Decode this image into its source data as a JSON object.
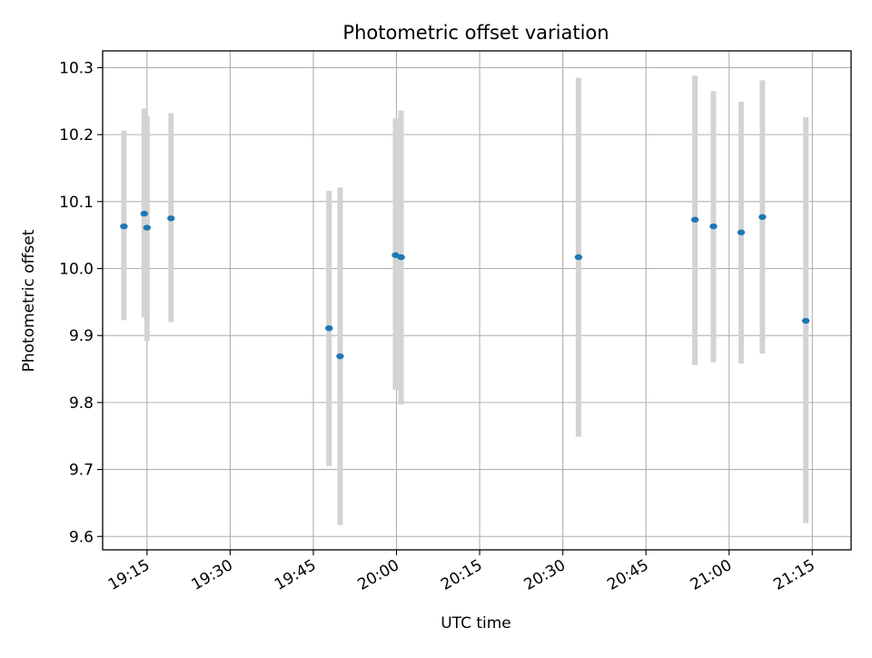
{
  "chart_data": {
    "type": "scatter",
    "title": "Photometric offset variation",
    "xlabel": "UTC time",
    "ylabel": "Photometric offset",
    "x_axis": {
      "type": "time",
      "range": [
        "19:07",
        "21:22"
      ],
      "tick_values": [
        "19:15",
        "19:30",
        "19:45",
        "20:00",
        "20:15",
        "20:30",
        "20:45",
        "21:00",
        "21:15"
      ],
      "tick_labels": [
        "19:15",
        "19:30",
        "19:45",
        "20:00",
        "20:15",
        "20:30",
        "20:45",
        "21:00",
        "21:15"
      ]
    },
    "y_axis": {
      "range": [
        9.58,
        10.325
      ],
      "tick_values": [
        9.6,
        9.7,
        9.8,
        9.9,
        10.0,
        10.1,
        10.2,
        10.3
      ],
      "tick_labels": [
        "9.6",
        "9.7",
        "9.8",
        "9.9",
        "10.0",
        "10.1",
        "10.2",
        "10.3"
      ]
    },
    "grid": true,
    "colors": {
      "points": "#1f77b4",
      "error_bars": "#d3d3d3",
      "grid": "#b0b0b0"
    },
    "points": [
      {
        "x": "19:10:50",
        "y": 10.063,
        "ylow": 9.923,
        "yhigh": 10.206
      },
      {
        "x": "19:14:30",
        "y": 10.082,
        "ylow": 9.927,
        "yhigh": 10.239
      },
      {
        "x": "19:15:00",
        "y": 10.061,
        "ylow": 9.892,
        "yhigh": 10.228
      },
      {
        "x": "19:19:20",
        "y": 10.075,
        "ylow": 9.92,
        "yhigh": 10.232
      },
      {
        "x": "19:47:50",
        "y": 9.911,
        "ylow": 9.705,
        "yhigh": 10.116
      },
      {
        "x": "19:49:50",
        "y": 9.869,
        "ylow": 9.617,
        "yhigh": 10.121
      },
      {
        "x": "19:59:50",
        "y": 10.02,
        "ylow": 9.819,
        "yhigh": 10.224
      },
      {
        "x": "20:00:50",
        "y": 10.017,
        "ylow": 9.797,
        "yhigh": 10.236
      },
      {
        "x": "20:32:50",
        "y": 10.017,
        "ylow": 9.749,
        "yhigh": 10.285
      },
      {
        "x": "20:53:50",
        "y": 10.073,
        "ylow": 9.856,
        "yhigh": 10.288
      },
      {
        "x": "20:57:10",
        "y": 10.063,
        "ylow": 9.86,
        "yhigh": 10.265
      },
      {
        "x": "21:02:10",
        "y": 10.054,
        "ylow": 9.858,
        "yhigh": 10.249
      },
      {
        "x": "21:06:00",
        "y": 10.077,
        "ylow": 9.873,
        "yhigh": 10.281
      },
      {
        "x": "21:13:50",
        "y": 9.922,
        "ylow": 9.62,
        "yhigh": 10.226
      }
    ]
  }
}
